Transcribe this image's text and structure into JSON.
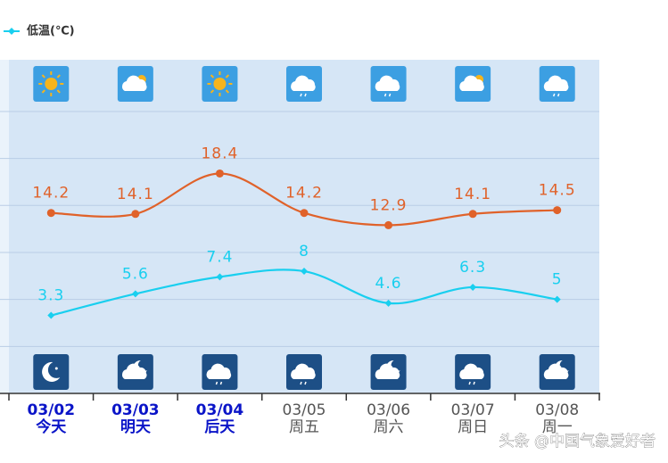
{
  "chart_data": {
    "type": "line",
    "categories": [
      "03/02",
      "03/03",
      "03/04",
      "03/05",
      "03/06",
      "03/07",
      "03/08"
    ],
    "weekdays": [
      "今天",
      "明天",
      "后天",
      "周五",
      "周六",
      "周日",
      "周一"
    ],
    "category_colors": [
      "#0a14c8",
      "#0a14c8",
      "#0a14c8",
      "#555555",
      "#555555",
      "#555555",
      "#555555"
    ],
    "category_bold": [
      true,
      true,
      true,
      false,
      false,
      false,
      false
    ],
    "series": [
      {
        "color": "#e0622a",
        "marker": "circle",
        "values": [
          14.2,
          14.1,
          18.4,
          14.2,
          12.9,
          14.1,
          14.5
        ]
      },
      {
        "name": "低温(℃)",
        "color": "#19cfef",
        "marker": "diamond",
        "values": [
          3.3,
          5.6,
          7.4,
          8,
          4.6,
          6.3,
          5
        ]
      }
    ],
    "ylim": [
      -5,
      30.5
    ],
    "yticks": [
      0,
      5,
      10,
      15,
      20,
      25
    ],
    "grid": true,
    "legend": "top-left",
    "watermark": "头条 @中国气象爱好者"
  }
}
